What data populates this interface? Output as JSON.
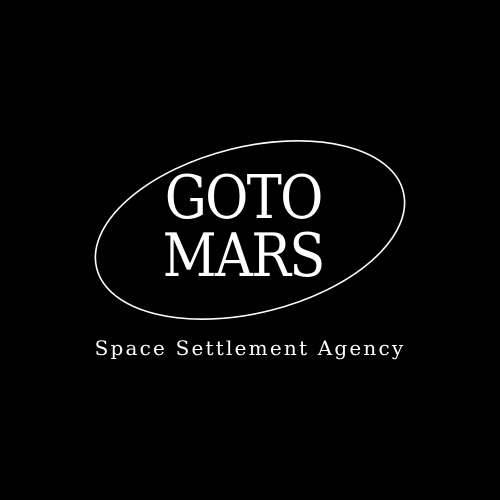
{
  "logo": {
    "line1": "GOTO",
    "line2": "MARS",
    "tagline": "Space Settlement Agency",
    "colors": {
      "background": "#000000",
      "foreground": "#ffffff"
    }
  }
}
